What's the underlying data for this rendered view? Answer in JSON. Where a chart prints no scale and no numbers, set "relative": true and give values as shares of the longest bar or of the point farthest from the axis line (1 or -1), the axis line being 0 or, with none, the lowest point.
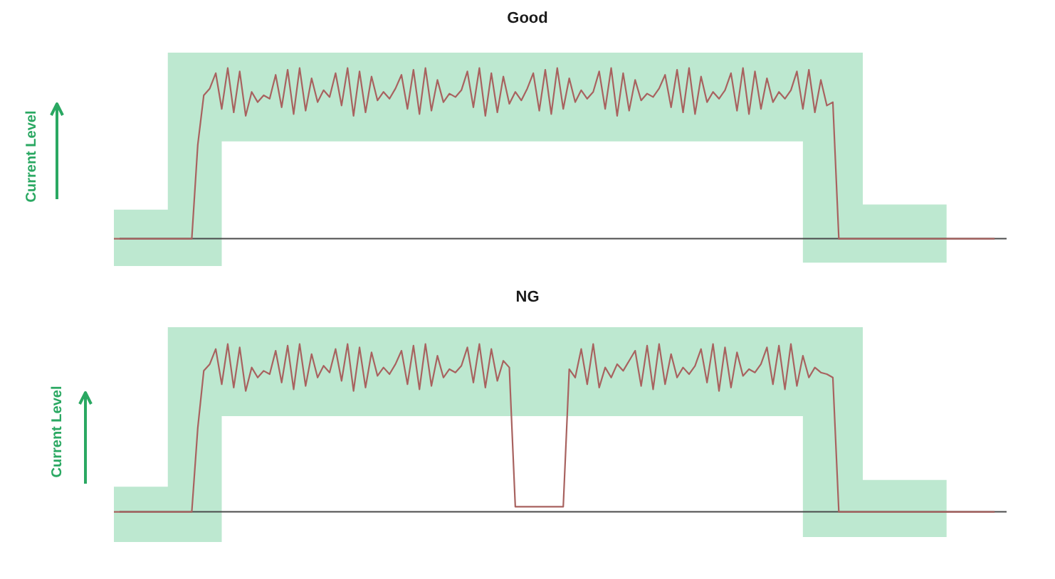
{
  "chart_data": [
    {
      "type": "line",
      "title": "Good",
      "ylabel": "Current Level",
      "relative": true,
      "categories": [
        null,
        null,
        null,
        null,
        null,
        null,
        null,
        null,
        null,
        null,
        null,
        null,
        null,
        null,
        null,
        null,
        null,
        null,
        null,
        null,
        null,
        null,
        null,
        null,
        null,
        null,
        null,
        null,
        null,
        null,
        null,
        null,
        null,
        null,
        null,
        null,
        null,
        null,
        null,
        null,
        null,
        null,
        null,
        null,
        null,
        null,
        null,
        null,
        null,
        null,
        null,
        null,
        null,
        null,
        null,
        null,
        null,
        null,
        null,
        null,
        null,
        null,
        null,
        null,
        null,
        null,
        null,
        null,
        null,
        null,
        null,
        null,
        null,
        null,
        null,
        null,
        null,
        null,
        null,
        null,
        null,
        null,
        null,
        null,
        null,
        null,
        null,
        null,
        null,
        null,
        null,
        null,
        null,
        null,
        null,
        null,
        null,
        null,
        null,
        null,
        null,
        null,
        null,
        null,
        null,
        null,
        null,
        null,
        null,
        null,
        null,
        null,
        null,
        null,
        null,
        null,
        null,
        null,
        null,
        null,
        null,
        null,
        null,
        null,
        null,
        null,
        null,
        null,
        null,
        null,
        null,
        null,
        null,
        null,
        null,
        null,
        null,
        null,
        null,
        null,
        null,
        null,
        null,
        null,
        null,
        null,
        null,
        null,
        null,
        null
      ],
      "series": [
        {
          "color": "#a8625f",
          "values": [
            0,
            0,
            0,
            0,
            0,
            0,
            0,
            0,
            0,
            0,
            0,
            0,
            0,
            0,
            0.55,
            0.84,
            0.88,
            0.97,
            0.76,
            1.0,
            0.74,
            0.98,
            0.72,
            0.86,
            0.8,
            0.84,
            0.82,
            0.96,
            0.77,
            0.99,
            0.73,
            1.0,
            0.75,
            0.94,
            0.8,
            0.87,
            0.83,
            0.97,
            0.78,
            1.0,
            0.72,
            0.98,
            0.74,
            0.95,
            0.81,
            0.86,
            0.82,
            0.88,
            0.96,
            0.76,
            0.99,
            0.73,
            1.0,
            0.75,
            0.93,
            0.8,
            0.85,
            0.83,
            0.87,
            0.98,
            0.77,
            1.0,
            0.72,
            0.97,
            0.74,
            0.95,
            0.79,
            0.86,
            0.81,
            0.88,
            0.97,
            0.75,
            0.99,
            0.73,
            1.0,
            0.76,
            0.94,
            0.8,
            0.87,
            0.82,
            0.86,
            0.98,
            0.76,
            1.0,
            0.72,
            0.97,
            0.75,
            0.93,
            0.81,
            0.85,
            0.83,
            0.88,
            0.96,
            0.77,
            0.99,
            0.74,
            1.0,
            0.73,
            0.95,
            0.8,
            0.86,
            0.82,
            0.87,
            0.97,
            0.75,
            1.0,
            0.73,
            0.98,
            0.76,
            0.94,
            0.8,
            0.86,
            0.82,
            0.87,
            0.98,
            0.76,
            0.99,
            0.74,
            0.93,
            0.78,
            0.8,
            0,
            0,
            0,
            0,
            0,
            0,
            0,
            0,
            0,
            0,
            0,
            0,
            0,
            0,
            0,
            0,
            0,
            0,
            0,
            0,
            0,
            0,
            0,
            0,
            0,
            0,
            0,
            null,
            null
          ],
          "upper": [
            0.17,
            0.17,
            0.17,
            0.17,
            0.17,
            0.17,
            0.17,
            0.17,
            0.17,
            0.17,
            1.09,
            1.09,
            1.09,
            1.09,
            1.09,
            1.09,
            1.09,
            1.09,
            1.09,
            1.09,
            1.09,
            1.09,
            1.09,
            1.09,
            1.09,
            1.09,
            1.09,
            1.09,
            1.09,
            1.09,
            1.09,
            1.09,
            1.09,
            1.09,
            1.09,
            1.09,
            1.09,
            1.09,
            1.09,
            1.09,
            1.09,
            1.09,
            1.09,
            1.09,
            1.09,
            1.09,
            1.09,
            1.09,
            1.09,
            1.09,
            1.09,
            1.09,
            1.09,
            1.09,
            1.09,
            1.09,
            1.09,
            1.09,
            1.09,
            1.09,
            1.09,
            1.09,
            1.09,
            1.09,
            1.09,
            1.09,
            1.09,
            1.09,
            1.09,
            1.09,
            1.09,
            1.09,
            1.09,
            1.09,
            1.09,
            1.09,
            1.09,
            1.09,
            1.09,
            1.09,
            1.09,
            1.09,
            1.09,
            1.09,
            1.09,
            1.09,
            1.09,
            1.09,
            1.09,
            1.09,
            1.09,
            1.09,
            1.09,
            1.09,
            1.09,
            1.09,
            1.09,
            1.09,
            1.09,
            1.09,
            1.09,
            1.09,
            1.09,
            1.09,
            1.09,
            1.09,
            1.09,
            1.09,
            1.09,
            1.09,
            1.09,
            1.09,
            1.09,
            1.09,
            1.09,
            1.09,
            1.09,
            1.09,
            1.09,
            1.09,
            1.09,
            1.09,
            1.09,
            1.09,
            1.09,
            1.09,
            0.2,
            0.2,
            0.2,
            0.2,
            0.2,
            0.2,
            0.2,
            0.2,
            0.2,
            0.2,
            0.2,
            0.2,
            0.2,
            0.2,
            null,
            null,
            null,
            null,
            null,
            null,
            null,
            null,
            null,
            null
          ],
          "lower": [
            -0.16,
            -0.16,
            -0.16,
            -0.16,
            -0.16,
            -0.16,
            -0.16,
            -0.16,
            -0.16,
            -0.16,
            -0.16,
            -0.16,
            -0.16,
            -0.16,
            -0.16,
            -0.16,
            -0.16,
            -0.16,
            -0.16,
            0.57,
            0.57,
            0.57,
            0.57,
            0.57,
            0.57,
            0.57,
            0.57,
            0.57,
            0.57,
            0.57,
            0.57,
            0.57,
            0.57,
            0.57,
            0.57,
            0.57,
            0.57,
            0.57,
            0.57,
            0.57,
            0.57,
            0.57,
            0.57,
            0.57,
            0.57,
            0.57,
            0.57,
            0.57,
            0.57,
            0.57,
            0.57,
            0.57,
            0.57,
            0.57,
            0.57,
            0.57,
            0.57,
            0.57,
            0.57,
            0.57,
            0.57,
            0.57,
            0.57,
            0.57,
            0.57,
            0.57,
            0.57,
            0.57,
            0.57,
            0.57,
            0.57,
            0.57,
            0.57,
            0.57,
            0.57,
            0.57,
            0.57,
            0.57,
            0.57,
            0.57,
            0.57,
            0.57,
            0.57,
            0.57,
            0.57,
            0.57,
            0.57,
            0.57,
            0.57,
            0.57,
            0.57,
            0.57,
            0.57,
            0.57,
            0.57,
            0.57,
            0.57,
            0.57,
            0.57,
            0.57,
            0.57,
            0.57,
            0.57,
            0.57,
            0.57,
            0.57,
            0.57,
            0.57,
            0.57,
            0.57,
            0.57,
            0.57,
            0.57,
            0.57,
            0.57,
            0.57,
            -0.14,
            -0.14,
            -0.14,
            -0.14,
            -0.14,
            -0.14,
            -0.14,
            -0.14,
            -0.14,
            -0.14,
            -0.14,
            -0.14,
            -0.14,
            -0.14,
            -0.14,
            -0.14,
            -0.14,
            -0.14,
            -0.14,
            -0.14,
            -0.14,
            -0.14,
            -0.14,
            -0.14,
            null,
            null,
            null,
            null,
            null,
            null,
            null,
            null,
            null,
            null
          ]
        }
      ]
    },
    {
      "type": "line",
      "title": "NG",
      "ylabel": "Current Level",
      "relative": true,
      "categories": [
        null,
        null,
        null,
        null,
        null,
        null,
        null,
        null,
        null,
        null,
        null,
        null,
        null,
        null,
        null,
        null,
        null,
        null,
        null,
        null,
        null,
        null,
        null,
        null,
        null,
        null,
        null,
        null,
        null,
        null,
        null,
        null,
        null,
        null,
        null,
        null,
        null,
        null,
        null,
        null,
        null,
        null,
        null,
        null,
        null,
        null,
        null,
        null,
        null,
        null,
        null,
        null,
        null,
        null,
        null,
        null,
        null,
        null,
        null,
        null,
        null,
        null,
        null,
        null,
        null,
        null,
        null,
        null,
        null,
        null,
        null,
        null,
        null,
        null,
        null,
        null,
        null,
        null,
        null,
        null,
        null,
        null,
        null,
        null,
        null,
        null,
        null,
        null,
        null,
        null,
        null,
        null,
        null,
        null,
        null,
        null,
        null,
        null,
        null,
        null,
        null,
        null,
        null,
        null,
        null,
        null,
        null,
        null,
        null,
        null,
        null,
        null,
        null,
        null,
        null,
        null,
        null,
        null,
        null,
        null,
        null,
        null,
        null,
        null,
        null,
        null,
        null,
        null,
        null,
        null,
        null,
        null,
        null,
        null,
        null,
        null,
        null,
        null,
        null,
        null,
        null,
        null,
        null,
        null,
        null,
        null,
        null,
        null,
        null,
        null
      ],
      "series": [
        {
          "color": "#a8625f",
          "values": [
            0,
            0,
            0,
            0,
            0,
            0,
            0,
            0,
            0,
            0,
            0,
            0,
            0,
            0,
            0.5,
            0.84,
            0.88,
            0.97,
            0.76,
            1.0,
            0.74,
            0.98,
            0.72,
            0.86,
            0.8,
            0.84,
            0.82,
            0.96,
            0.77,
            0.99,
            0.73,
            1.0,
            0.75,
            0.94,
            0.8,
            0.87,
            0.83,
            0.97,
            0.78,
            1.0,
            0.72,
            0.98,
            0.74,
            0.95,
            0.81,
            0.86,
            0.82,
            0.88,
            0.96,
            0.76,
            0.99,
            0.73,
            1.0,
            0.75,
            0.93,
            0.8,
            0.85,
            0.83,
            0.87,
            0.98,
            0.77,
            1.0,
            0.74,
            0.97,
            0.78,
            0.9,
            0.86,
            0.03,
            0.03,
            0.03,
            0.03,
            0.03,
            0.03,
            0.03,
            0.03,
            0.03,
            0.85,
            0.8,
            0.97,
            0.76,
            1.0,
            0.74,
            0.86,
            0.8,
            0.88,
            0.84,
            0.9,
            0.96,
            0.75,
            0.99,
            0.73,
            1.0,
            0.76,
            0.94,
            0.8,
            0.86,
            0.82,
            0.87,
            0.97,
            0.77,
            1.0,
            0.72,
            0.98,
            0.74,
            0.95,
            0.81,
            0.85,
            0.83,
            0.88,
            0.98,
            0.76,
            0.99,
            0.73,
            1.0,
            0.75,
            0.93,
            0.8,
            0.86,
            0.83,
            0.82,
            0.8,
            0,
            0,
            0,
            0,
            0,
            0,
            0,
            0,
            0,
            0,
            0,
            0,
            0,
            0,
            0,
            0,
            0,
            0,
            0,
            0,
            0,
            0,
            0,
            0,
            0,
            0,
            0,
            null,
            null
          ],
          "upper": [
            0.15,
            0.15,
            0.15,
            0.15,
            0.15,
            0.15,
            0.15,
            0.15,
            0.15,
            0.15,
            1.1,
            1.1,
            1.1,
            1.1,
            1.1,
            1.1,
            1.1,
            1.1,
            1.1,
            1.1,
            1.1,
            1.1,
            1.1,
            1.1,
            1.1,
            1.1,
            1.1,
            1.1,
            1.1,
            1.1,
            1.1,
            1.1,
            1.1,
            1.1,
            1.1,
            1.1,
            1.1,
            1.1,
            1.1,
            1.1,
            1.1,
            1.1,
            1.1,
            1.1,
            1.1,
            1.1,
            1.1,
            1.1,
            1.1,
            1.1,
            1.1,
            1.1,
            1.1,
            1.1,
            1.1,
            1.1,
            1.1,
            1.1,
            1.1,
            1.1,
            1.1,
            1.1,
            1.1,
            1.1,
            1.1,
            1.1,
            1.1,
            1.1,
            1.1,
            1.1,
            1.1,
            1.1,
            1.1,
            1.1,
            1.1,
            1.1,
            1.1,
            1.1,
            1.1,
            1.1,
            1.1,
            1.1,
            1.1,
            1.1,
            1.1,
            1.1,
            1.1,
            1.1,
            1.1,
            1.1,
            1.1,
            1.1,
            1.1,
            1.1,
            1.1,
            1.1,
            1.1,
            1.1,
            1.1,
            1.1,
            1.1,
            1.1,
            1.1,
            1.1,
            1.1,
            1.1,
            1.1,
            1.1,
            1.1,
            1.1,
            1.1,
            1.1,
            1.1,
            1.1,
            1.1,
            1.1,
            1.1,
            1.1,
            1.1,
            1.1,
            1.1,
            1.1,
            1.1,
            1.1,
            1.1,
            1.1,
            0.19,
            0.19,
            0.19,
            0.19,
            0.19,
            0.19,
            0.19,
            0.19,
            0.19,
            0.19,
            0.19,
            0.19,
            0.19,
            0.19,
            null,
            null,
            null,
            null,
            null,
            null,
            null,
            null,
            null,
            null
          ],
          "lower": [
            -0.18,
            -0.18,
            -0.18,
            -0.18,
            -0.18,
            -0.18,
            -0.18,
            -0.18,
            -0.18,
            -0.18,
            -0.18,
            -0.18,
            -0.18,
            -0.18,
            -0.18,
            -0.18,
            -0.18,
            -0.18,
            -0.18,
            0.57,
            0.57,
            0.57,
            0.57,
            0.57,
            0.57,
            0.57,
            0.57,
            0.57,
            0.57,
            0.57,
            0.57,
            0.57,
            0.57,
            0.57,
            0.57,
            0.57,
            0.57,
            0.57,
            0.57,
            0.57,
            0.57,
            0.57,
            0.57,
            0.57,
            0.57,
            0.57,
            0.57,
            0.57,
            0.57,
            0.57,
            0.57,
            0.57,
            0.57,
            0.57,
            0.57,
            0.57,
            0.57,
            0.57,
            0.57,
            0.57,
            0.57,
            0.57,
            0.57,
            0.57,
            0.57,
            0.57,
            0.57,
            0.57,
            0.57,
            0.57,
            0.57,
            0.57,
            0.57,
            0.57,
            0.57,
            0.57,
            0.57,
            0.57,
            0.57,
            0.57,
            0.57,
            0.57,
            0.57,
            0.57,
            0.57,
            0.57,
            0.57,
            0.57,
            0.57,
            0.57,
            0.57,
            0.57,
            0.57,
            0.57,
            0.57,
            0.57,
            0.57,
            0.57,
            0.57,
            0.57,
            0.57,
            0.57,
            0.57,
            0.57,
            0.57,
            0.57,
            0.57,
            0.57,
            0.57,
            0.57,
            0.57,
            0.57,
            0.57,
            0.57,
            0.57,
            0.57,
            -0.15,
            -0.15,
            -0.15,
            -0.15,
            -0.15,
            -0.15,
            -0.15,
            -0.15,
            -0.15,
            -0.15,
            -0.15,
            -0.15,
            -0.15,
            -0.15,
            -0.15,
            -0.15,
            -0.15,
            -0.15,
            -0.15,
            -0.15,
            -0.15,
            -0.15,
            -0.15,
            -0.15,
            null,
            null,
            null,
            null,
            null,
            null,
            null,
            null,
            null,
            null
          ]
        }
      ]
    }
  ]
}
